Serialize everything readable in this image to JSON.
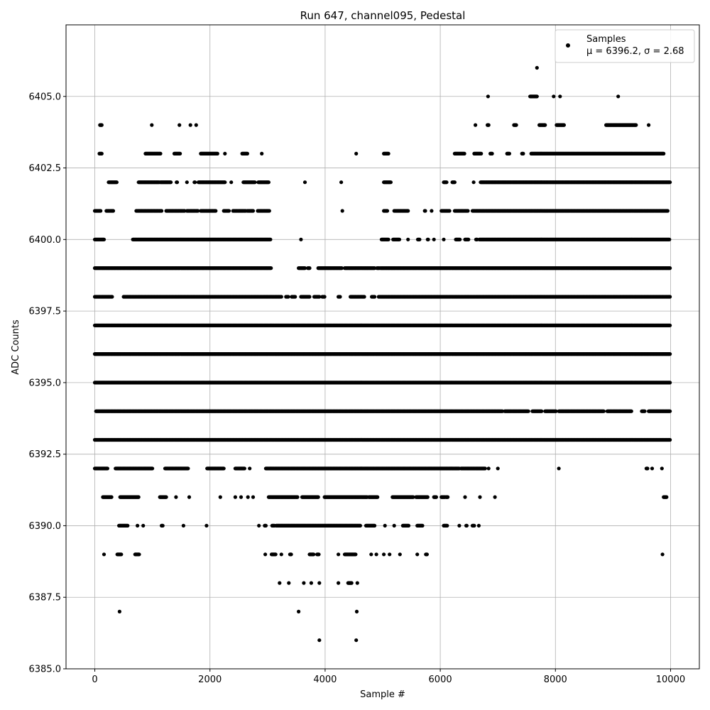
{
  "chart_data": {
    "type": "scatter",
    "title": "Run 647, channel095, Pedestal",
    "xlabel": "Sample #",
    "ylabel": "ADC Counts",
    "xlim": [
      -500,
      10500
    ],
    "ylim": [
      6385.0,
      6407.5
    ],
    "xticks": [
      0,
      2000,
      4000,
      6000,
      8000,
      10000
    ],
    "xtick_labels": [
      "0",
      "2000",
      "4000",
      "6000",
      "8000",
      "10000"
    ],
    "yticks": [
      6385.0,
      6387.5,
      6390.0,
      6392.5,
      6395.0,
      6397.5,
      6400.0,
      6402.5,
      6405.0
    ],
    "ytick_labels": [
      "6385.0",
      "6387.5",
      "6390.0",
      "6392.5",
      "6395.0",
      "6397.5",
      "6400.0",
      "6402.5",
      "6405.0"
    ],
    "grid": true,
    "legend_position": "top-right",
    "marker_color": "#000000",
    "series": [
      {
        "name": "Samples",
        "legend_label": "μ = 6396.2, σ = 2.68",
        "levels": [
          {
            "y": 6406,
            "ranges": [
              [
                7680,
                7680
              ]
            ]
          },
          {
            "y": 6405,
            "ranges": [
              [
                6830,
                6830
              ],
              [
                7560,
                7680
              ],
              [
                7970,
                7970
              ],
              [
                8080,
                8080
              ],
              [
                9090,
                9090
              ]
            ]
          },
          {
            "y": 6404,
            "ranges": [
              [
                90,
                120
              ],
              [
                990,
                990
              ],
              [
                1470,
                1470
              ],
              [
                1660,
                1660
              ],
              [
                1760,
                1760
              ],
              [
                6610,
                6610
              ],
              [
                6820,
                6840
              ],
              [
                7280,
                7320
              ],
              [
                7720,
                7820
              ],
              [
                8020,
                8150
              ],
              [
                8880,
                9400
              ],
              [
                9620,
                9620
              ]
            ]
          },
          {
            "y": 6403,
            "ranges": [
              [
                80,
                120
              ],
              [
                880,
                1140
              ],
              [
                1380,
                1480
              ],
              [
                1840,
                2130
              ],
              [
                2260,
                2260
              ],
              [
                2560,
                2650
              ],
              [
                2900,
                2900
              ],
              [
                4540,
                4540
              ],
              [
                5020,
                5100
              ],
              [
                6250,
                6420
              ],
              [
                6590,
                6710
              ],
              [
                6870,
                6900
              ],
              [
                7160,
                7200
              ],
              [
                7420,
                7440
              ],
              [
                7580,
                9880
              ]
            ]
          },
          {
            "y": 6402,
            "ranges": [
              [
                240,
                380
              ],
              [
                760,
                1120
              ],
              [
                1140,
                1320
              ],
              [
                1420,
                1430
              ],
              [
                1600,
                1600
              ],
              [
                1730,
                1740
              ],
              [
                1800,
                2260
              ],
              [
                2370,
                2370
              ],
              [
                2580,
                2780
              ],
              [
                2840,
                3020
              ],
              [
                3650,
                3650
              ],
              [
                4280,
                4280
              ],
              [
                5020,
                5140
              ],
              [
                6060,
                6110
              ],
              [
                6210,
                6250
              ],
              [
                6580,
                6580
              ],
              [
                6700,
                9990
              ]
            ]
          },
          {
            "y": 6401,
            "ranges": [
              [
                0,
                100
              ],
              [
                200,
                320
              ],
              [
                720,
                1160
              ],
              [
                1240,
                1560
              ],
              [
                1600,
                1790
              ],
              [
                1840,
                2100
              ],
              [
                2240,
                2330
              ],
              [
                2400,
                2620
              ],
              [
                2650,
                2750
              ],
              [
                2830,
                3030
              ],
              [
                4300,
                4300
              ],
              [
                5020,
                5080
              ],
              [
                5200,
                5440
              ],
              [
                5730,
                5740
              ],
              [
                5850,
                5850
              ],
              [
                6020,
                6160
              ],
              [
                6250,
                6480
              ],
              [
                6560,
                9950
              ]
            ]
          },
          {
            "y": 6400,
            "ranges": [
              [
                0,
                160
              ],
              [
                660,
                3050
              ],
              [
                3580,
                3580
              ],
              [
                4980,
                5100
              ],
              [
                5180,
                5290
              ],
              [
                5440,
                5440
              ],
              [
                5610,
                5640
              ],
              [
                5780,
                5790
              ],
              [
                5890,
                5890
              ],
              [
                6060,
                6060
              ],
              [
                6270,
                6340
              ],
              [
                6430,
                6490
              ],
              [
                6620,
                6640
              ],
              [
                6680,
                9980
              ]
            ]
          },
          {
            "y": 6399,
            "ranges": [
              [
                0,
                3060
              ],
              [
                3540,
                3650
              ],
              [
                3700,
                3730
              ],
              [
                3880,
                4290
              ],
              [
                4340,
                4860
              ],
              [
                4900,
                4940
              ],
              [
                4960,
                9990
              ]
            ]
          },
          {
            "y": 6398,
            "ranges": [
              [
                0,
                300
              ],
              [
                500,
                3240
              ],
              [
                3320,
                3360
              ],
              [
                3420,
                3480
              ],
              [
                3580,
                3730
              ],
              [
                3810,
                3900
              ],
              [
                3950,
                3990
              ],
              [
                4230,
                4260
              ],
              [
                4440,
                4680
              ],
              [
                4810,
                4860
              ],
              [
                4930,
                9990
              ]
            ]
          },
          {
            "y": 6397,
            "ranges": [
              [
                0,
                9990
              ]
            ]
          },
          {
            "y": 6396,
            "ranges": [
              [
                0,
                9990
              ]
            ]
          },
          {
            "y": 6395,
            "ranges": [
              [
                0,
                9990
              ]
            ]
          },
          {
            "y": 6394,
            "ranges": [
              [
                20,
                7080
              ],
              [
                7120,
                7530
              ],
              [
                7600,
                7760
              ],
              [
                7820,
                8010
              ],
              [
                8060,
                8840
              ],
              [
                8900,
                9320
              ],
              [
                9500,
                9550
              ],
              [
                9620,
                9990
              ]
            ]
          },
          {
            "y": 6393,
            "ranges": [
              [
                0,
                9990
              ]
            ]
          },
          {
            "y": 6392,
            "ranges": [
              [
                0,
                220
              ],
              [
                360,
                1000
              ],
              [
                1220,
                1620
              ],
              [
                1950,
                2240
              ],
              [
                2440,
                2600
              ],
              [
                2690,
                2690
              ],
              [
                2970,
                6330
              ],
              [
                6360,
                6780
              ],
              [
                6840,
                6840
              ],
              [
                7000,
                7000
              ],
              [
                8060,
                8060
              ],
              [
                9580,
                9600
              ],
              [
                9680,
                9680
              ],
              [
                9850,
                9850
              ]
            ]
          },
          {
            "y": 6391,
            "ranges": [
              [
                140,
                290
              ],
              [
                440,
                760
              ],
              [
                1130,
                1240
              ],
              [
                1410,
                1410
              ],
              [
                1640,
                1640
              ],
              [
                2180,
                2180
              ],
              [
                2440,
                2440
              ],
              [
                2540,
                2540
              ],
              [
                2660,
                2660
              ],
              [
                2750,
                2750
              ],
              [
                3020,
                3520
              ],
              [
                3600,
                3880
              ],
              [
                3990,
                4730
              ],
              [
                4760,
                4910
              ],
              [
                5170,
                5530
              ],
              [
                5580,
                5780
              ],
              [
                5890,
                5930
              ],
              [
                6020,
                6080
              ],
              [
                6100,
                6130
              ],
              [
                6430,
                6430
              ],
              [
                6690,
                6690
              ],
              [
                6950,
                6950
              ],
              [
                9880,
                9930
              ]
            ]
          },
          {
            "y": 6390,
            "ranges": [
              [
                420,
                570
              ],
              [
                740,
                740
              ],
              [
                840,
                840
              ],
              [
                1160,
                1180
              ],
              [
                1540,
                1540
              ],
              [
                1940,
                1940
              ],
              [
                2850,
                2850
              ],
              [
                2950,
                2970
              ],
              [
                3080,
                3120
              ],
              [
                3150,
                4610
              ],
              [
                4710,
                4860
              ],
              [
                5040,
                5040
              ],
              [
                5200,
                5200
              ],
              [
                5350,
                5450
              ],
              [
                5600,
                5690
              ],
              [
                6060,
                6120
              ],
              [
                6330,
                6330
              ],
              [
                6450,
                6460
              ],
              [
                6560,
                6590
              ],
              [
                6670,
                6670
              ]
            ]
          },
          {
            "y": 6389,
            "ranges": [
              [
                160,
                160
              ],
              [
                390,
                460
              ],
              [
                700,
                770
              ],
              [
                2960,
                2960
              ],
              [
                3070,
                3140
              ],
              [
                3240,
                3240
              ],
              [
                3390,
                3410
              ],
              [
                3730,
                3800
              ],
              [
                3860,
                3890
              ],
              [
                4230,
                4230
              ],
              [
                4340,
                4530
              ],
              [
                4800,
                4800
              ],
              [
                4890,
                4890
              ],
              [
                5020,
                5020
              ],
              [
                5120,
                5120
              ],
              [
                5300,
                5300
              ],
              [
                5600,
                5600
              ],
              [
                5750,
                5770
              ],
              [
                9860,
                9860
              ]
            ]
          },
          {
            "y": 6388,
            "ranges": [
              [
                3210,
                3210
              ],
              [
                3370,
                3370
              ],
              [
                3630,
                3630
              ],
              [
                3760,
                3760
              ],
              [
                3900,
                3900
              ],
              [
                4230,
                4230
              ],
              [
                4400,
                4460
              ],
              [
                4560,
                4560
              ]
            ]
          },
          {
            "y": 6387,
            "ranges": [
              [
                430,
                430
              ],
              [
                3540,
                3540
              ],
              [
                4550,
                4550
              ]
            ]
          },
          {
            "y": 6386,
            "ranges": [
              [
                3900,
                3900
              ],
              [
                4540,
                4540
              ]
            ]
          }
        ]
      }
    ]
  }
}
